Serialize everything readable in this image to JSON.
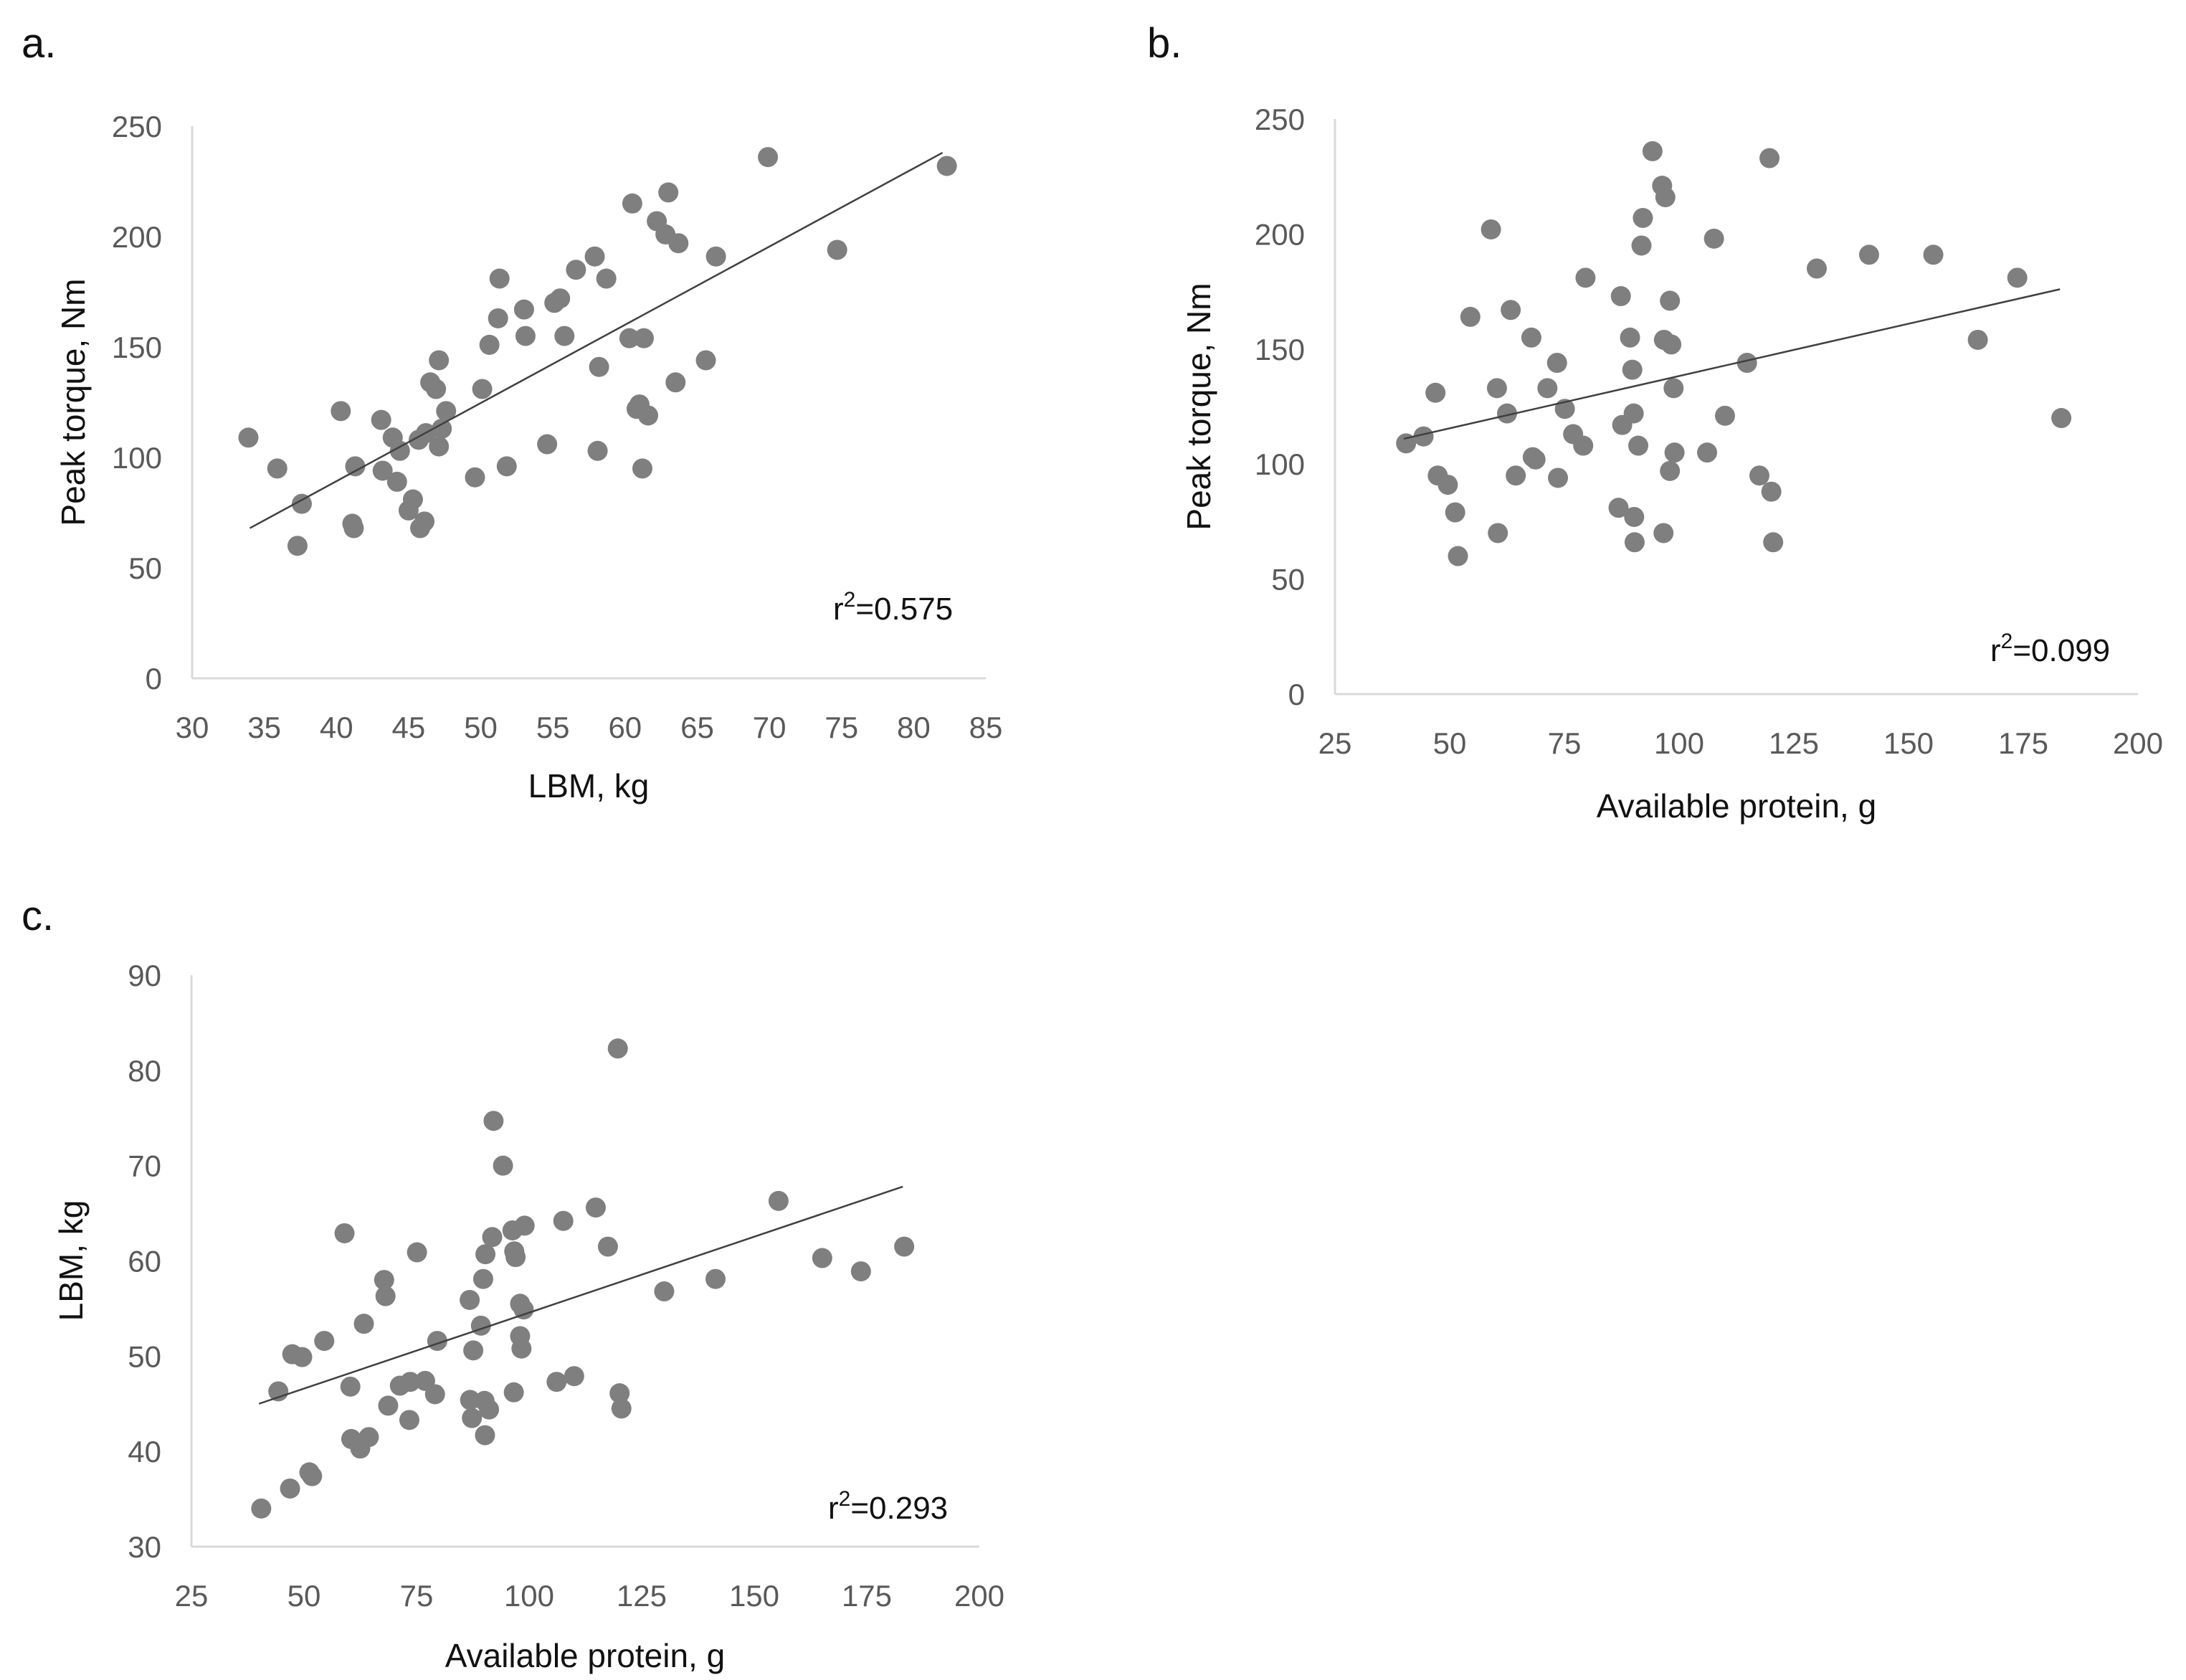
{
  "chart_data": [
    {
      "type": "scatter",
      "panel_label": "a.",
      "xlabel": "LBM, kg",
      "ylabel": "Peak torque, Nm",
      "xlim": [
        30,
        85
      ],
      "ylim": [
        0,
        250
      ],
      "xticks": [
        30,
        35,
        40,
        45,
        50,
        55,
        60,
        65,
        70,
        75,
        80,
        85
      ],
      "yticks": [
        0,
        50,
        100,
        150,
        200,
        250
      ],
      "grid": false,
      "annotation": {
        "prefix": "r",
        "sup": "2",
        "value": "=0.575",
        "text": "r2=0.575"
      },
      "trendline": {
        "x": [
          34,
          82
        ],
        "y": [
          68,
          238
        ]
      },
      "points": [
        [
          33.9,
          109
        ],
        [
          35.9,
          95
        ],
        [
          37.3,
          60
        ],
        [
          37.6,
          79
        ],
        [
          40.3,
          121
        ],
        [
          41.1,
          70
        ],
        [
          41.2,
          68
        ],
        [
          41.3,
          96
        ],
        [
          43.1,
          117
        ],
        [
          43.2,
          94
        ],
        [
          43.9,
          109
        ],
        [
          44.2,
          89
        ],
        [
          44.4,
          103
        ],
        [
          45,
          76
        ],
        [
          45.3,
          81
        ],
        [
          45.7,
          108
        ],
        [
          45.8,
          68
        ],
        [
          46.1,
          71
        ],
        [
          46.2,
          111
        ],
        [
          46.5,
          134
        ],
        [
          46.9,
          131
        ],
        [
          47.1,
          144
        ],
        [
          47.1,
          105
        ],
        [
          47.3,
          113
        ],
        [
          47.6,
          121
        ],
        [
          49.6,
          91
        ],
        [
          50.1,
          131
        ],
        [
          50.6,
          151
        ],
        [
          51.2,
          163
        ],
        [
          51.3,
          181
        ],
        [
          51.8,
          96
        ],
        [
          53,
          167
        ],
        [
          53.1,
          155
        ],
        [
          54.6,
          106
        ],
        [
          55.1,
          170
        ],
        [
          55.5,
          172
        ],
        [
          55.8,
          155
        ],
        [
          56.6,
          185
        ],
        [
          57.9,
          191
        ],
        [
          58.1,
          103
        ],
        [
          58.2,
          141
        ],
        [
          58.7,
          181
        ],
        [
          60.3,
          154
        ],
        [
          60.5,
          215
        ],
        [
          60.8,
          122
        ],
        [
          61,
          124
        ],
        [
          61.3,
          154
        ],
        [
          61.6,
          119
        ],
        [
          61.2,
          95
        ],
        [
          62.2,
          207
        ],
        [
          62.8,
          201
        ],
        [
          63,
          220
        ],
        [
          63.5,
          134
        ],
        [
          63.7,
          197
        ],
        [
          65.6,
          144
        ],
        [
          66.3,
          191
        ],
        [
          69.9,
          236
        ],
        [
          74.7,
          194
        ],
        [
          82.3,
          232
        ]
      ]
    },
    {
      "type": "scatter",
      "panel_label": "b.",
      "xlabel": "Available protein, g",
      "ylabel": "Peak torque, Nm",
      "xlim": [
        25,
        200
      ],
      "ylim": [
        0,
        250
      ],
      "xticks": [
        25,
        50,
        75,
        100,
        125,
        150,
        175,
        200
      ],
      "yticks": [
        0,
        50,
        100,
        150,
        200,
        250
      ],
      "grid": false,
      "annotation": {
        "prefix": "r",
        "sup": "2",
        "value": "=0.099",
        "text": "r2=0.099"
      },
      "trendline": {
        "x": [
          40,
          183
        ],
        "y": [
          111,
          176
        ]
      },
      "points": [
        [
          40.5,
          109
        ],
        [
          44.3,
          112
        ],
        [
          46.9,
          131
        ],
        [
          47.4,
          95
        ],
        [
          49.6,
          91
        ],
        [
          51.2,
          79
        ],
        [
          51.8,
          60
        ],
        [
          54.5,
          164
        ],
        [
          59,
          202
        ],
        [
          60.3,
          133
        ],
        [
          60.5,
          70
        ],
        [
          62.5,
          122
        ],
        [
          63.3,
          167
        ],
        [
          64.4,
          95
        ],
        [
          67.8,
          155
        ],
        [
          68.1,
          103
        ],
        [
          68.7,
          102
        ],
        [
          71.3,
          133
        ],
        [
          73.4,
          144
        ],
        [
          73.6,
          94
        ],
        [
          75.1,
          124
        ],
        [
          76.9,
          113
        ],
        [
          79.1,
          108
        ],
        [
          79.6,
          181
        ],
        [
          86.8,
          81
        ],
        [
          87.3,
          173
        ],
        [
          87.6,
          117
        ],
        [
          89.3,
          155
        ],
        [
          89.8,
          141
        ],
        [
          90.1,
          122
        ],
        [
          90.2,
          77
        ],
        [
          90.3,
          66
        ],
        [
          91.1,
          108
        ],
        [
          91.8,
          195
        ],
        [
          92.1,
          207
        ],
        [
          94.2,
          236
        ],
        [
          96.3,
          221
        ],
        [
          96.6,
          70
        ],
        [
          96.7,
          154
        ],
        [
          97,
          216
        ],
        [
          98,
          171
        ],
        [
          98,
          97
        ],
        [
          98.3,
          152
        ],
        [
          98.8,
          133
        ],
        [
          99,
          105
        ],
        [
          106.1,
          105
        ],
        [
          107.6,
          198
        ],
        [
          110,
          121
        ],
        [
          114.8,
          144
        ],
        [
          117.5,
          95
        ],
        [
          119.7,
          233
        ],
        [
          120.1,
          88
        ],
        [
          120.5,
          66
        ],
        [
          130,
          185
        ],
        [
          141.4,
          191
        ],
        [
          155.4,
          191
        ],
        [
          165.1,
          154
        ],
        [
          173.7,
          181
        ],
        [
          183.3,
          120
        ]
      ]
    },
    {
      "type": "scatter",
      "panel_label": "c.",
      "xlabel": "Available protein, g",
      "ylabel": "LBM, kg",
      "xlim": [
        25,
        200
      ],
      "ylim": [
        30,
        90
      ],
      "xticks": [
        25,
        50,
        75,
        100,
        125,
        150,
        175,
        200
      ],
      "yticks": [
        30,
        40,
        50,
        60,
        70,
        80,
        90
      ],
      "grid": false,
      "annotation": {
        "prefix": "r",
        "sup": "2",
        "value": "=0.293",
        "text": "r2=0.293"
      },
      "trendline": {
        "x": [
          40,
          183
        ],
        "y": [
          45,
          67.8
        ]
      },
      "points": [
        [
          40.5,
          34
        ],
        [
          44.3,
          46.3
        ],
        [
          46.9,
          36.1
        ],
        [
          47.4,
          50.2
        ],
        [
          49.6,
          49.9
        ],
        [
          51.2,
          37.8
        ],
        [
          51.8,
          37.4
        ],
        [
          54.5,
          51.6
        ],
        [
          59,
          62.9
        ],
        [
          60.3,
          46.8
        ],
        [
          60.5,
          41.3
        ],
        [
          62.5,
          40.3
        ],
        [
          63.3,
          53.4
        ],
        [
          64.4,
          41.5
        ],
        [
          67.8,
          58
        ],
        [
          68.1,
          56.3
        ],
        [
          68.7,
          44.8
        ],
        [
          71.3,
          46.9
        ],
        [
          73.4,
          43.3
        ],
        [
          73.6,
          47.3
        ],
        [
          75.1,
          60.9
        ],
        [
          76.9,
          47.4
        ],
        [
          79.1,
          46
        ],
        [
          79.6,
          51.6
        ],
        [
          86.8,
          55.9
        ],
        [
          87.3,
          43.5
        ],
        [
          87.6,
          50.6
        ],
        [
          86.9,
          45.4
        ],
        [
          89.3,
          53.2
        ],
        [
          89.8,
          58.1
        ],
        [
          90.1,
          45.3
        ],
        [
          90.2,
          41.7
        ],
        [
          90.3,
          60.7
        ],
        [
          91.1,
          44.4
        ],
        [
          91.8,
          62.5
        ],
        [
          92.1,
          74.7
        ],
        [
          94.2,
          70.0
        ],
        [
          96.3,
          63.2
        ],
        [
          96.6,
          46.2
        ],
        [
          96.7,
          61
        ],
        [
          97,
          60.4
        ],
        [
          98,
          55.5
        ],
        [
          98,
          52.1
        ],
        [
          98.3,
          50.8
        ],
        [
          98.8,
          54.9
        ],
        [
          99,
          63.7
        ],
        [
          106.1,
          47.3
        ],
        [
          107.6,
          64.2
        ],
        [
          110,
          47.9
        ],
        [
          114.8,
          65.6
        ],
        [
          117.5,
          61.5
        ],
        [
          119.7,
          82.3
        ],
        [
          120.1,
          46.1
        ],
        [
          120.5,
          44.5
        ],
        [
          130,
          56.8
        ],
        [
          141.4,
          58.1
        ],
        [
          155.4,
          66.3
        ],
        [
          165.1,
          60.3
        ],
        [
          173.7,
          58.9
        ],
        [
          183.3,
          61.5
        ]
      ]
    }
  ]
}
